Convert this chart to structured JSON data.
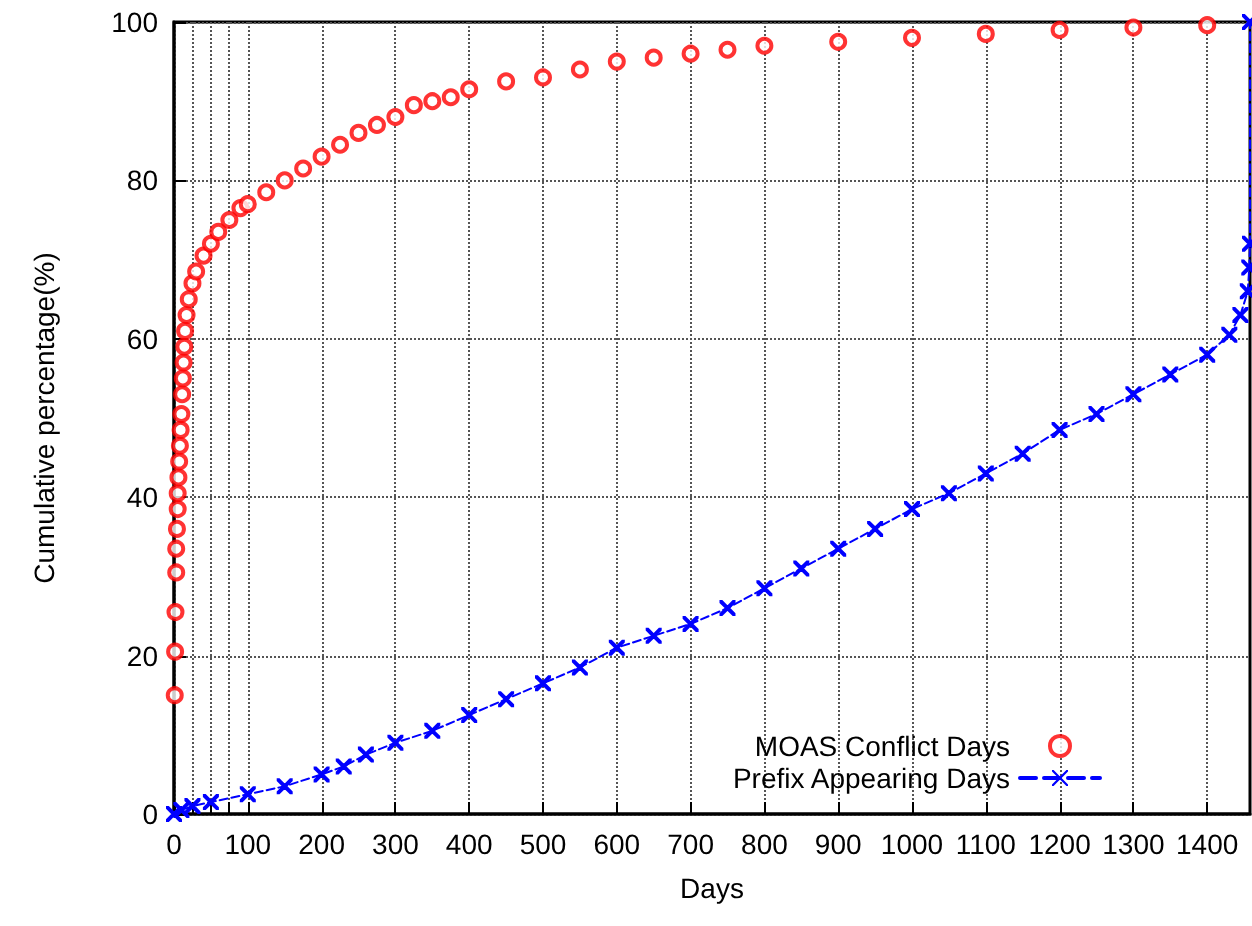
{
  "chart_data": {
    "type": "scatter",
    "xlabel": "Days",
    "ylabel": "Cumulative percentage(%)",
    "xlim": [
      0,
      1458
    ],
    "ylim": [
      0,
      100
    ],
    "xticks": [
      0,
      {
        "value": 25,
        "label": null
      },
      {
        "value": 50,
        "label": null
      },
      {
        "value": 75,
        "label": null
      },
      100,
      200,
      300,
      400,
      500,
      600,
      700,
      800,
      900,
      1000,
      1100,
      1200,
      1300,
      1400
    ],
    "yticks": [
      0,
      20,
      40,
      60,
      80,
      100
    ],
    "grid": true,
    "legend": "bottom right",
    "series": [
      {
        "name": "MOAS Conflict Days",
        "marker": "circle",
        "color": "#ff0000",
        "x": [
          1,
          1.5,
          2,
          3,
          3,
          4,
          5,
          5,
          6,
          7,
          8,
          9,
          10,
          11,
          12,
          13,
          14,
          15,
          17,
          20,
          25,
          30,
          40,
          50,
          60,
          75,
          90,
          100,
          125,
          150,
          175,
          200,
          225,
          250,
          275,
          300,
          325,
          350,
          375,
          400,
          450,
          500,
          550,
          600,
          650,
          700,
          750,
          800,
          900,
          1000,
          1100,
          1200,
          1300,
          1400
        ],
        "values": [
          15,
          20.5,
          25.5,
          30.5,
          33.5,
          36,
          38.5,
          40.5,
          42.5,
          44.5,
          46.5,
          48.5,
          50.5,
          53,
          55,
          57,
          59,
          61,
          63,
          65,
          67,
          68.5,
          70.5,
          72,
          73.5,
          75,
          76.5,
          77,
          78.5,
          80,
          81.5,
          83,
          84.5,
          86,
          87,
          88,
          89.5,
          90,
          90.5,
          91.5,
          92.5,
          93,
          94,
          95,
          95.5,
          96,
          96.5,
          97,
          97.5,
          98,
          98.5,
          99,
          99.3,
          99.6
        ]
      },
      {
        "name": "Prefix Appearing Days",
        "type": "line",
        "marker": "cross",
        "line_style": "dashed",
        "color": "#0000ff",
        "x": [
          0,
          10,
          25,
          50,
          100,
          150,
          200,
          230,
          260,
          300,
          350,
          400,
          450,
          500,
          550,
          600,
          650,
          700,
          750,
          800,
          850,
          900,
          950,
          1000,
          1050,
          1100,
          1150,
          1200,
          1250,
          1300,
          1350,
          1400,
          1430,
          1445,
          1455,
          1457,
          1458,
          1458
        ],
        "values": [
          0,
          0.5,
          1,
          1.5,
          2.5,
          3.5,
          5,
          6,
          7.5,
          9,
          10.5,
          12.5,
          14.5,
          16.5,
          18.5,
          21,
          22.5,
          24,
          26,
          28.5,
          31,
          33.5,
          36,
          38.5,
          40.5,
          43,
          45.5,
          48.5,
          50.5,
          53,
          55.5,
          58,
          60.5,
          63,
          66,
          69,
          72,
          100
        ]
      }
    ]
  }
}
